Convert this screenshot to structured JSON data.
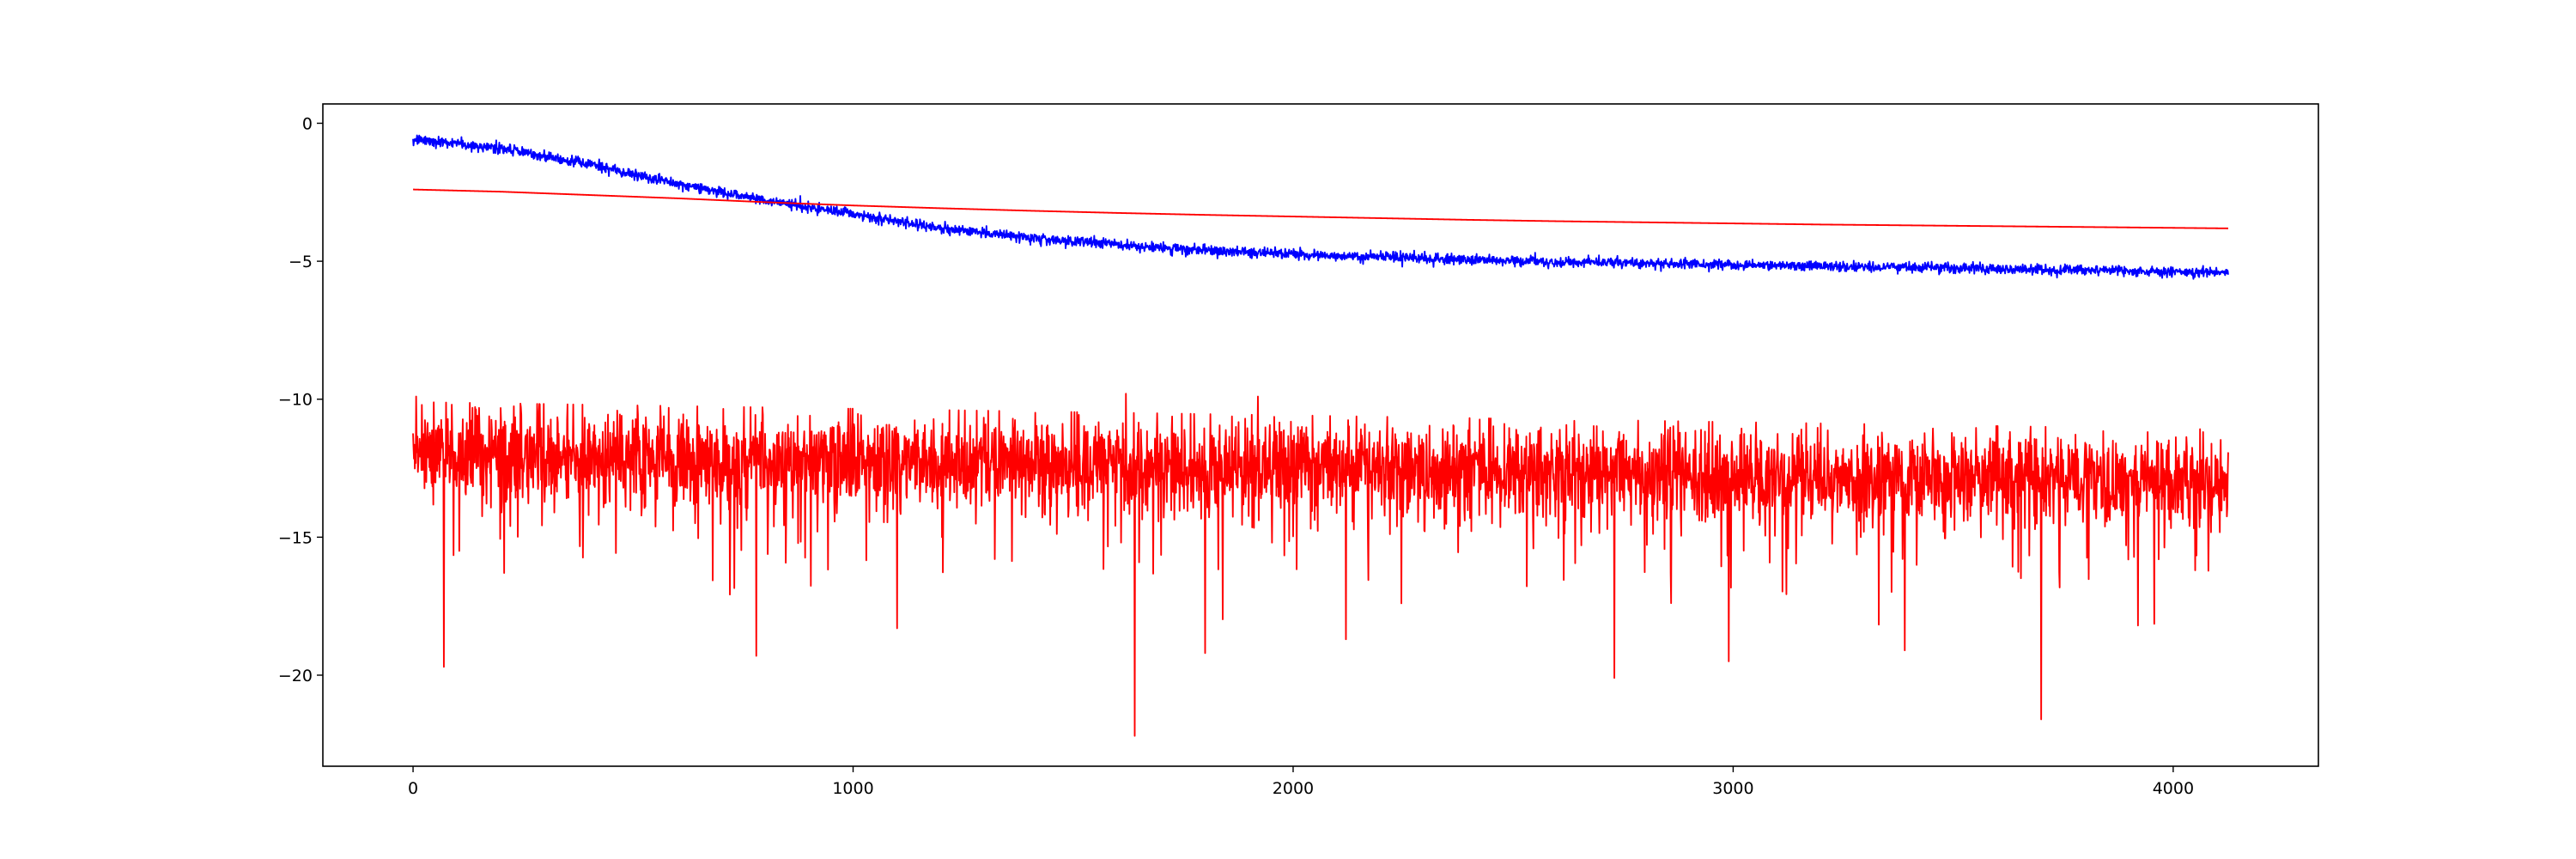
{
  "chart_data": {
    "type": "line",
    "title": "",
    "xlabel": "",
    "ylabel": "",
    "xlim": [
      -205,
      4330
    ],
    "ylim": [
      -23.3,
      0.7
    ],
    "x_ticks": [
      0,
      1000,
      2000,
      3000,
      4000
    ],
    "y_ticks": [
      0,
      -5,
      -10,
      -15,
      -20
    ],
    "x_tick_labels": [
      "0",
      "1000",
      "2000",
      "3000",
      "4000"
    ],
    "y_tick_labels": [
      "0",
      "−5",
      "−10",
      "−15",
      "−20"
    ],
    "grid": false,
    "legend": "none",
    "n_points": 4126,
    "series": [
      {
        "color": "#0000ff",
        "style": "noisy decay",
        "x": [
          0,
          200,
          400,
          600,
          800,
          1000,
          1200,
          1400,
          1600,
          1800,
          2000,
          2200,
          2400,
          2600,
          2800,
          3000,
          3200,
          3400,
          3600,
          3800,
          4000,
          4125
        ],
        "values": [
          -0.6,
          -0.9,
          -1.5,
          -2.2,
          -2.8,
          -3.3,
          -3.8,
          -4.15,
          -4.4,
          -4.6,
          -4.75,
          -4.85,
          -4.95,
          -5.02,
          -5.08,
          -5.13,
          -5.18,
          -5.22,
          -5.27,
          -5.32,
          -5.38,
          -5.42
        ],
        "noise_sd": 0.09
      },
      {
        "color": "#ff0000",
        "style": "smooth",
        "x": [
          0,
          200,
          400,
          600,
          800,
          1000,
          1200,
          1400,
          1600,
          1800,
          2000,
          2200,
          2400,
          2600,
          2800,
          3000,
          3200,
          3400,
          3600,
          3800,
          4000,
          4125
        ],
        "values": [
          -2.4,
          -2.48,
          -2.6,
          -2.72,
          -2.86,
          -2.98,
          -3.08,
          -3.17,
          -3.25,
          -3.32,
          -3.38,
          -3.44,
          -3.5,
          -3.55,
          -3.59,
          -3.63,
          -3.67,
          -3.7,
          -3.73,
          -3.76,
          -3.79,
          -3.81
        ]
      },
      {
        "color": "#ff0000",
        "style": "noisy band",
        "x": [
          0,
          4125
        ],
        "values": [
          -12.0,
          -13.0
        ],
        "noise_sd": 0.85,
        "spikes": [
          {
            "x": 7,
            "y": -9.9
          },
          {
            "x": 70,
            "y": -19.7
          },
          {
            "x": 780,
            "y": -19.3
          },
          {
            "x": 1100,
            "y": -18.3
          },
          {
            "x": 1620,
            "y": -9.8
          },
          {
            "x": 1640,
            "y": -22.2
          },
          {
            "x": 1800,
            "y": -19.2
          },
          {
            "x": 1920,
            "y": -9.9
          },
          {
            "x": 2120,
            "y": -18.7
          },
          {
            "x": 2730,
            "y": -20.1
          },
          {
            "x": 2990,
            "y": -19.5
          },
          {
            "x": 3390,
            "y": -19.1
          },
          {
            "x": 3700,
            "y": -21.6
          },
          {
            "x": 3920,
            "y": -18.2
          }
        ]
      }
    ]
  }
}
